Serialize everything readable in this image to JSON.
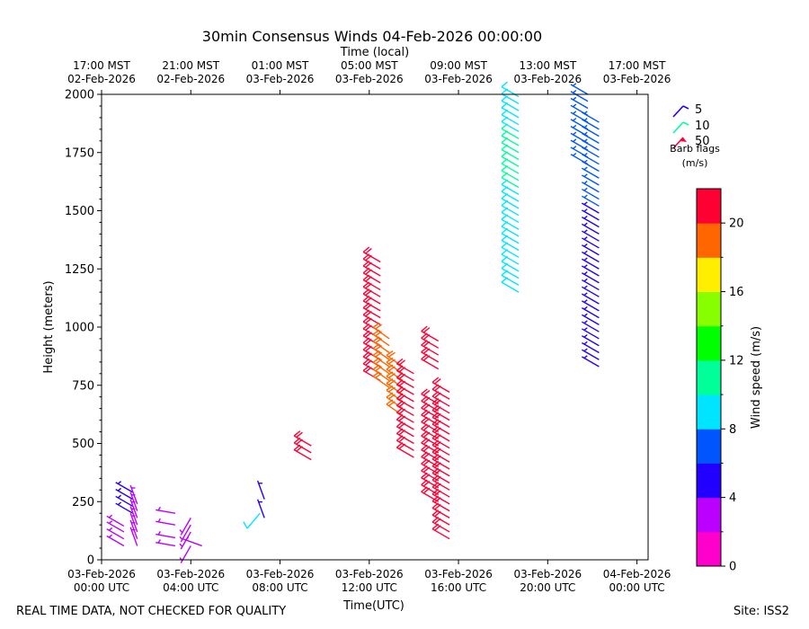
{
  "chart_data": {
    "type": "wind_barb_profile",
    "title": "30min Consensus Winds 04-Feb-2026 00:00:00",
    "top_axis_label": "Time (local)",
    "xlabel": "Time(UTC)",
    "ylabel": "Height (meters)",
    "x_range_hours_utc": [
      0,
      24.5
    ],
    "ylim": [
      0,
      2000
    ],
    "y_ticks": [
      0,
      250,
      500,
      750,
      1000,
      1250,
      1500,
      1750,
      2000
    ],
    "bottom_ticks": [
      {
        "hour": 0,
        "line1": "03-Feb-2026",
        "line2": "00:00 UTC"
      },
      {
        "hour": 4,
        "line1": "03-Feb-2026",
        "line2": "04:00 UTC"
      },
      {
        "hour": 8,
        "line1": "03-Feb-2026",
        "line2": "08:00 UTC"
      },
      {
        "hour": 12,
        "line1": "03-Feb-2026",
        "line2": "12:00 UTC"
      },
      {
        "hour": 16,
        "line1": "03-Feb-2026",
        "line2": "16:00 UTC"
      },
      {
        "hour": 20,
        "line1": "03-Feb-2026",
        "line2": "20:00 UTC"
      },
      {
        "hour": 24,
        "line1": "04-Feb-2026",
        "line2": "00:00 UTC"
      }
    ],
    "top_ticks": [
      {
        "hour": 0,
        "line1": "17:00 MST",
        "line2": "02-Feb-2026"
      },
      {
        "hour": 4,
        "line1": "21:00 MST",
        "line2": "02-Feb-2026"
      },
      {
        "hour": 8,
        "line1": "01:00 MST",
        "line2": "03-Feb-2026"
      },
      {
        "hour": 12,
        "line1": "05:00 MST",
        "line2": "03-Feb-2026"
      },
      {
        "hour": 16,
        "line1": "09:00 MST",
        "line2": "03-Feb-2026"
      },
      {
        "hour": 20,
        "line1": "13:00 MST",
        "line2": "03-Feb-2026"
      },
      {
        "hour": 24,
        "line1": "17:00 MST",
        "line2": "03-Feb-2026"
      }
    ],
    "legend": {
      "title_line1": "Barb flags",
      "title_line2": "(m/s)",
      "entries": [
        {
          "label": "5",
          "color": "#2200ff"
        },
        {
          "label": "10",
          "color": "#00ff99"
        },
        {
          "label": "50",
          "color": "#ff0033"
        }
      ]
    },
    "colorbar": {
      "label": "Wind speed (m/s)",
      "min": 0,
      "max": 22,
      "ticks": [
        0,
        4,
        8,
        12,
        16,
        20
      ],
      "colors": [
        "#ff00cc",
        "#bb00ff",
        "#2200ff",
        "#0055ff",
        "#00e5ff",
        "#00ff99",
        "#00ff00",
        "#88ff00",
        "#ffee00",
        "#ff6600",
        "#ff0033"
      ]
    },
    "barb_columns": [
      {
        "hour": 1.0,
        "speed": 2.5,
        "dir": 300,
        "heights": [
          60,
          90,
          120,
          145
        ]
      },
      {
        "hour": 1.4,
        "speed": 5,
        "dir": 300,
        "heights": [
          200,
          230,
          260,
          290
        ]
      },
      {
        "hour": 1.6,
        "speed": 3.5,
        "dir": 340,
        "heights": [
          60,
          90,
          120,
          150,
          180,
          210,
          240
        ]
      },
      {
        "hour": 3.3,
        "speed": 2.5,
        "dir": 280,
        "heights": [
          60,
          95,
          150,
          200
        ]
      },
      {
        "hour": 4.0,
        "speed": 2.5,
        "dir": 210,
        "heights": [
          60,
          120,
          150,
          180
        ]
      },
      {
        "hour": 4.5,
        "speed": 2.5,
        "dir": 290,
        "heights": [
          60
        ]
      },
      {
        "hour": 7.1,
        "speed": 9,
        "dir": 220,
        "heights": [
          200
        ]
      },
      {
        "hour": 7.3,
        "speed": 4,
        "dir": 340,
        "heights": [
          180,
          260
        ]
      },
      {
        "hour": 9.4,
        "speed": 21,
        "dir": 300,
        "heights": [
          430,
          460,
          490
        ]
      },
      {
        "hour": 12.5,
        "speed": 21,
        "dir": 300,
        "heights": [
          770,
          800,
          830,
          860,
          890,
          920,
          950,
          980,
          1010,
          1040,
          1070,
          1100,
          1130,
          1160,
          1190,
          1220,
          1250,
          1280
        ]
      },
      {
        "hour": 12.9,
        "speed": 19,
        "dir": 305,
        "heights": [
          740,
          770,
          800,
          830,
          860,
          890,
          920,
          950
        ]
      },
      {
        "hour": 13.5,
        "speed": 19,
        "dir": 305,
        "heights": [
          620,
          650,
          680,
          710,
          740,
          770,
          800,
          830
        ]
      },
      {
        "hour": 14.0,
        "speed": 21,
        "dir": 300,
        "heights": [
          440,
          470,
          500,
          530,
          560,
          590,
          620,
          650,
          680,
          710,
          740,
          770,
          800
        ]
      },
      {
        "hour": 15.1,
        "speed": 21,
        "dir": 300,
        "heights": [
          250,
          280,
          310,
          340,
          370,
          400,
          430,
          460,
          490,
          520,
          550,
          580,
          610,
          640,
          670
        ]
      },
      {
        "hour": 15.1,
        "speed": 21,
        "dir": 300,
        "heights": [
          820,
          850,
          880,
          910,
          940
        ]
      },
      {
        "hour": 15.6,
        "speed": 21,
        "dir": 300,
        "heights": [
          90,
          120,
          150,
          180,
          210,
          240,
          270,
          300,
          330,
          360,
          390,
          420,
          450,
          480,
          510,
          540,
          570,
          600,
          630,
          660,
          690,
          720
        ]
      },
      {
        "hour": 18.7,
        "speed": 8.5,
        "dir": 300,
        "heights": [
          1150,
          1180,
          1210,
          1240,
          1270,
          1300,
          1330,
          1360,
          1390,
          1420,
          1450,
          1480,
          1510,
          1540,
          1570
        ]
      },
      {
        "hour": 18.7,
        "speed": 10.5,
        "dir": 300,
        "heights": [
          1600,
          1630,
          1660,
          1690,
          1720,
          1750,
          1780,
          1810
        ]
      },
      {
        "hour": 18.7,
        "speed": 8.5,
        "dir": 300,
        "heights": [
          1840,
          1870,
          1900,
          1930,
          1960,
          1990
        ]
      },
      {
        "hour": 21.8,
        "speed": 6.5,
        "dir": 300,
        "heights": [
          1700,
          1730,
          1760,
          1790,
          1820,
          1850,
          1880,
          1910,
          1940,
          1970,
          2000
        ]
      },
      {
        "hour": 22.3,
        "speed": 4.5,
        "dir": 300,
        "heights": [
          830,
          860,
          890,
          920,
          950,
          980,
          1010,
          1040,
          1070,
          1100,
          1130,
          1160,
          1190,
          1220,
          1250,
          1280,
          1310,
          1340,
          1370,
          1400,
          1430,
          1460,
          1490
        ]
      },
      {
        "hour": 22.3,
        "speed": 6.5,
        "dir": 300,
        "heights": [
          1520,
          1550,
          1580,
          1610,
          1640,
          1670,
          1700,
          1730,
          1760,
          1790,
          1820,
          1850,
          1880
        ]
      }
    ]
  },
  "footer": {
    "left": "REAL TIME DATA, NOT CHECKED FOR QUALITY",
    "right": "Site: ISS2"
  }
}
